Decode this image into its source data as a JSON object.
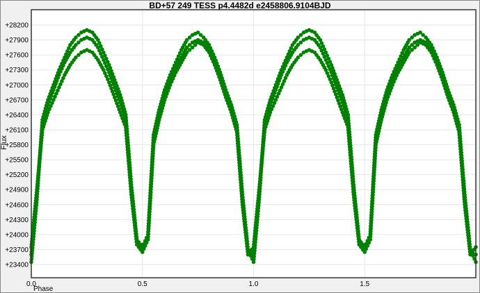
{
  "chart_data": {
    "type": "scatter",
    "title": "BD+57 249 TESS p4.4482d e2458806.9104BJD",
    "xlabel": "Phase",
    "ylabel": "Flux",
    "xlim": [
      0,
      2
    ],
    "ylim": [
      23136,
      28506
    ],
    "x_ticks": [
      "0.0",
      "0.5",
      "1.0",
      "1.5"
    ],
    "x_tick_values": [
      0,
      0.5,
      1.0,
      1.5
    ],
    "y_ticks": [
      "+23400",
      "+23700",
      "+24000",
      "+24300",
      "+24600",
      "+24900",
      "+25200",
      "+25500",
      "+25800",
      "+26100",
      "+26400",
      "+26700",
      "+27000",
      "+27300",
      "+27600",
      "+27900",
      "+28200"
    ],
    "y_tick_values": [
      23400,
      23700,
      24000,
      24300,
      24600,
      24900,
      25200,
      25500,
      25800,
      26100,
      26400,
      26700,
      27000,
      27300,
      27600,
      27900,
      28200
    ],
    "grid": true,
    "marker_color": "#008000",
    "x": [
      0,
      0.025,
      0.05,
      0.075,
      0.1,
      0.125,
      0.15,
      0.175,
      0.2,
      0.225,
      0.25,
      0.275,
      0.3,
      0.325,
      0.35,
      0.375,
      0.4,
      0.425,
      0.45,
      0.475,
      0.5,
      0.525,
      0.55,
      0.575,
      0.6,
      0.625,
      0.65,
      0.675,
      0.7,
      0.725,
      0.75,
      0.775,
      0.8,
      0.825,
      0.85,
      0.875,
      0.9,
      0.925,
      0.95,
      0.975,
      1.0,
      1.025,
      1.05,
      1.075,
      1.1,
      1.125,
      1.15,
      1.175,
      1.2,
      1.225,
      1.25,
      1.275,
      1.3,
      1.325,
      1.35,
      1.375,
      1.4,
      1.425,
      1.45,
      1.475,
      1.5,
      1.525,
      1.55,
      1.575,
      1.6,
      1.625,
      1.65,
      1.675,
      1.7,
      1.725,
      1.75,
      1.775,
      1.8,
      1.825,
      1.85,
      1.875,
      1.9,
      1.925,
      1.95,
      1.975,
      2.0
    ],
    "series": [
      {
        "values": [
          23450,
          24700,
          26300,
          26700,
          27000,
          27300,
          27550,
          27800,
          27950,
          28050,
          28100,
          28050,
          27900,
          27650,
          27400,
          27100,
          26800,
          26400,
          25000,
          23900,
          23750,
          24000,
          26000,
          26500,
          26900,
          27200,
          27450,
          27700,
          27900,
          28000,
          28050,
          27950,
          27800,
          27550,
          27250,
          26900,
          26600,
          26200,
          24800,
          23700,
          23450,
          24700,
          26300,
          26700,
          27000,
          27300,
          27550,
          27800,
          27950,
          28050,
          28100,
          28050,
          27900,
          27650,
          27400,
          27100,
          26800,
          26400,
          25000,
          23900,
          23750,
          24000,
          26000,
          26500,
          26900,
          27200,
          27450,
          27700,
          27900,
          28000,
          28050,
          27950,
          27800,
          27550,
          27250,
          26900,
          26600,
          26200,
          24800,
          23700,
          23450
        ]
      },
      {
        "values": [
          23600,
          24800,
          26250,
          26600,
          26900,
          27200,
          27450,
          27650,
          27800,
          27900,
          27950,
          27900,
          27750,
          27500,
          27250,
          26950,
          26650,
          26300,
          24900,
          23850,
          23700,
          23950,
          25900,
          26400,
          26800,
          27100,
          27350,
          27550,
          27750,
          27850,
          27900,
          27850,
          27700,
          27450,
          27150,
          26800,
          26500,
          26100,
          24700,
          23650,
          23600,
          24800,
          26250,
          26600,
          26900,
          27200,
          27450,
          27650,
          27800,
          27900,
          27950,
          27900,
          27750,
          27500,
          27250,
          26950,
          26650,
          26300,
          24900,
          23850,
          23700,
          23950,
          25900,
          26400,
          26800,
          27100,
          27350,
          27550,
          27750,
          27850,
          27900,
          27850,
          27700,
          27450,
          27150,
          26800,
          26500,
          26100,
          24700,
          23650,
          23600
        ]
      },
      {
        "values": [
          23750,
          24900,
          26100,
          26450,
          26700,
          26950,
          27200,
          27400,
          27550,
          27650,
          27700,
          27650,
          27500,
          27300,
          27050,
          26750,
          26450,
          26150,
          24800,
          23800,
          23650,
          23900,
          25800,
          26300,
          26700,
          27000,
          27250,
          27450,
          27650,
          27750,
          27850,
          27800,
          27650,
          27400,
          27100,
          26750,
          26450,
          26050,
          24600,
          23600,
          23750,
          24900,
          26100,
          26450,
          26700,
          26950,
          27200,
          27400,
          27550,
          27650,
          27700,
          27650,
          27500,
          27300,
          27050,
          26750,
          26450,
          26150,
          24800,
          23800,
          23650,
          23900,
          25800,
          26300,
          26700,
          27000,
          27250,
          27450,
          27650,
          27750,
          27850,
          27800,
          27650,
          27400,
          27100,
          26750,
          26450,
          26050,
          24600,
          23600,
          23750
        ]
      }
    ]
  }
}
